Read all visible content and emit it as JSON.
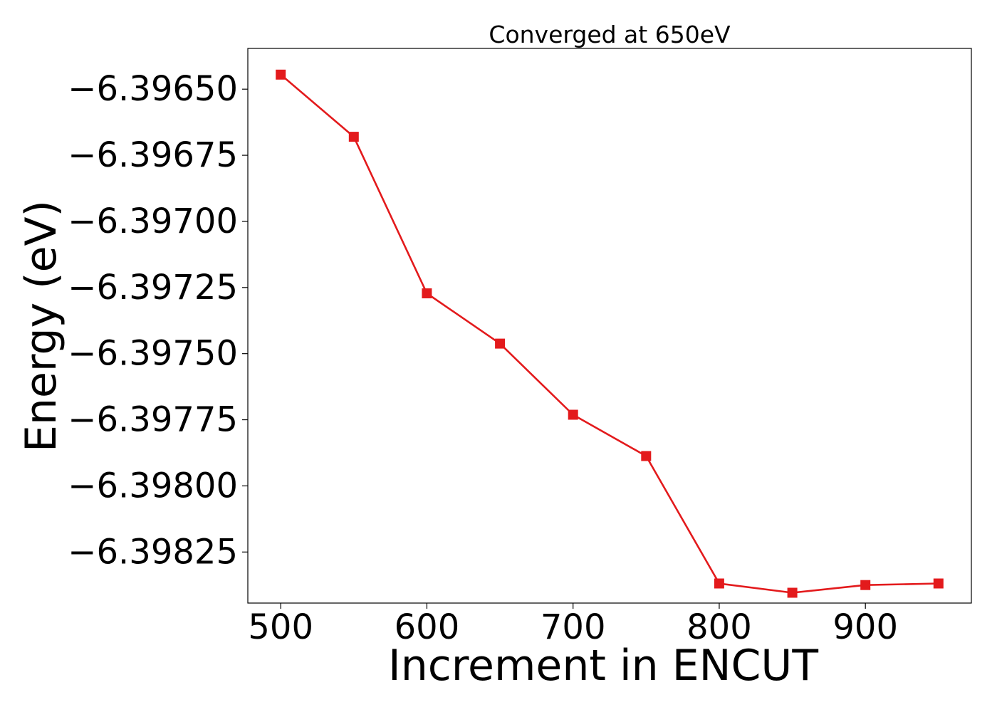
{
  "chart_data": {
    "type": "line",
    "title": "Converged at 650eV",
    "xlabel": "Increment in ENCUT",
    "ylabel": "Energy (eV)",
    "x": [
      500,
      550,
      600,
      650,
      700,
      750,
      800,
      850,
      900,
      950
    ],
    "series": [
      {
        "values": [
          -6.396445,
          -6.39668,
          -6.397272,
          -6.397462,
          -6.397731,
          -6.397887,
          -6.398369,
          -6.398404,
          -6.398375,
          -6.398369
        ],
        "color": "#e31a1c",
        "marker": "square"
      }
    ],
    "xlim": [
      477.5,
      972.5
    ],
    "ylim": [
      -6.398443,
      -6.396346
    ],
    "xticks": [
      500,
      600,
      700,
      800,
      900
    ],
    "xtick_labels": [
      "500",
      "600",
      "700",
      "800",
      "900"
    ],
    "yticks": [
      -6.3965,
      -6.39675,
      -6.397,
      -6.39725,
      -6.3975,
      -6.39775,
      -6.398,
      -6.39825
    ],
    "ytick_labels": [
      "−6.39650",
      "−6.39675",
      "−6.39700",
      "−6.39725",
      "−6.39750",
      "−6.39775",
      "−6.39800",
      "−6.39825"
    ],
    "grid": false,
    "legend": "none"
  }
}
